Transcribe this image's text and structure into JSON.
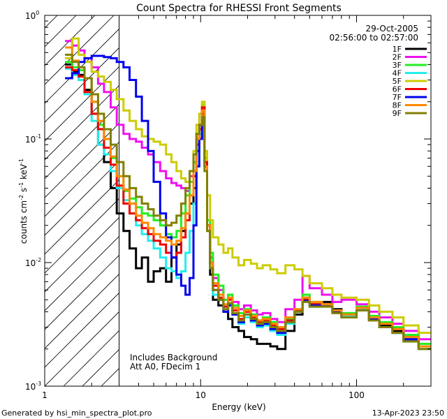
{
  "footer": {
    "generated": "Generated by hsi_min_spectra_plot.pro",
    "timestamp": "13-Apr-2023 23:50"
  },
  "chart_data": {
    "type": "line",
    "title": "Count Spectra for RHESSI Front Segments",
    "xlabel": "Energy (keV)",
    "ylabel_parts": [
      "counts cm",
      "-2",
      " s",
      "-1",
      " keV",
      "-1"
    ],
    "xscale": "log",
    "yscale": "log",
    "xlim": [
      1.0,
      300.0
    ],
    "ylim": [
      0.001,
      1.0
    ],
    "x_ticks": [
      {
        "value": 1,
        "label": "1"
      },
      {
        "value": 10,
        "label": "10"
      },
      {
        "value": 100,
        "label": "100"
      }
    ],
    "y_ticks": [
      {
        "value": 1,
        "base": "10",
        "exp": "0"
      },
      {
        "value": 0.1,
        "base": "10",
        "exp": "-1"
      },
      {
        "value": 0.01,
        "base": "10",
        "exp": "-2"
      },
      {
        "value": 0.001,
        "base": "10",
        "exp": "-3"
      }
    ],
    "date": "29-Oct-2005",
    "time_range": "02:56:00 to 02:57:00",
    "annotations": [
      "Includes Background",
      "Att A0, FDecim 1"
    ],
    "hatched_region": {
      "x_from": 1.0,
      "x_to": 3.0
    },
    "energy_edges": [
      1.35,
      1.5,
      1.65,
      1.8,
      2.0,
      2.2,
      2.4,
      2.65,
      2.9,
      3.2,
      3.5,
      3.85,
      4.2,
      4.6,
      5.0,
      5.5,
      6.0,
      6.5,
      7.0,
      7.5,
      8.0,
      8.5,
      9.0,
      9.4,
      9.8,
      10.2,
      10.6,
      11.0,
      11.5,
      12.0,
      13.0,
      14.0,
      15.0,
      16.0,
      17.5,
      19.0,
      21.0,
      23.0,
      25.0,
      28.0,
      31.0,
      35.0,
      40.0,
      45.0,
      50.0,
      60.0,
      70.0,
      80.0,
      100.0,
      120.0,
      140.0,
      170.0,
      200.0,
      250.0,
      300.0
    ],
    "series": [
      {
        "name": "1F",
        "color": "#000000",
        "values": [
          0.4,
          0.35,
          0.33,
          0.25,
          0.16,
          0.09,
          0.065,
          0.04,
          0.025,
          0.018,
          0.013,
          0.009,
          0.011,
          0.007,
          0.0085,
          0.009,
          0.007,
          0.011,
          0.014,
          0.018,
          0.025,
          0.03,
          0.04,
          0.08,
          0.1,
          0.17,
          0.06,
          0.02,
          0.008,
          0.005,
          0.0045,
          0.004,
          0.0035,
          0.003,
          0.0028,
          0.0025,
          0.0024,
          0.0022,
          0.0022,
          0.0021,
          0.002,
          0.0028,
          0.0038,
          0.0052,
          0.0046,
          0.0048,
          0.0042,
          0.0038,
          0.0042,
          0.0036,
          0.0031,
          0.0028,
          0.0024,
          0.0021
        ]
      },
      {
        "name": "2F",
        "color": "#ee11ee",
        "values": [
          0.62,
          0.57,
          0.52,
          0.45,
          0.38,
          0.28,
          0.24,
          0.18,
          0.13,
          0.11,
          0.1,
          0.095,
          0.085,
          0.075,
          0.065,
          0.055,
          0.048,
          0.044,
          0.042,
          0.04,
          0.038,
          0.05,
          0.065,
          0.1,
          0.12,
          0.16,
          0.06,
          0.02,
          0.011,
          0.0075,
          0.006,
          0.005,
          0.0055,
          0.0048,
          0.0042,
          0.0045,
          0.0041,
          0.0038,
          0.0039,
          0.0035,
          0.0033,
          0.0042,
          0.005,
          0.0078,
          0.0062,
          0.0055,
          0.0048,
          0.005,
          0.0046,
          0.004,
          0.0036,
          0.0032,
          0.0028,
          0.0024
        ]
      },
      {
        "name": "3F",
        "color": "#22ee22",
        "values": [
          0.42,
          0.38,
          0.36,
          0.31,
          0.2,
          0.13,
          0.1,
          0.07,
          0.05,
          0.038,
          0.033,
          0.028,
          0.025,
          0.024,
          0.022,
          0.02,
          0.017,
          0.016,
          0.018,
          0.025,
          0.035,
          0.045,
          0.065,
          0.11,
          0.13,
          0.19,
          0.07,
          0.022,
          0.012,
          0.008,
          0.0065,
          0.005,
          0.0055,
          0.0045,
          0.0039,
          0.0042,
          0.0038,
          0.0034,
          0.0036,
          0.0033,
          0.003,
          0.0035,
          0.0042,
          0.0055,
          0.0048,
          0.0046,
          0.0041,
          0.0039,
          0.0044,
          0.0037,
          0.0033,
          0.003,
          0.0026,
          0.0022
        ]
      },
      {
        "name": "4F",
        "color": "#22eeee",
        "values": [
          0.37,
          0.33,
          0.3,
          0.23,
          0.14,
          0.09,
          0.075,
          0.055,
          0.04,
          0.032,
          0.025,
          0.02,
          0.017,
          0.015,
          0.013,
          0.011,
          0.009,
          0.0085,
          0.0075,
          0.0085,
          0.012,
          0.018,
          0.03,
          0.06,
          0.11,
          0.15,
          0.055,
          0.018,
          0.009,
          0.0055,
          0.005,
          0.0042,
          0.0046,
          0.0038,
          0.0032,
          0.0036,
          0.0033,
          0.003,
          0.0031,
          0.0028,
          0.0026,
          0.0032,
          0.004,
          0.0048,
          0.0044,
          0.0045,
          0.004,
          0.0037,
          0.0042,
          0.0035,
          0.003,
          0.0027,
          0.0023,
          0.002
        ]
      },
      {
        "name": "5F",
        "color": "#cccc00",
        "values": [
          0.45,
          0.65,
          0.48,
          0.42,
          0.35,
          0.32,
          0.29,
          0.25,
          0.21,
          0.17,
          0.14,
          0.12,
          0.105,
          0.1,
          0.095,
          0.09,
          0.075,
          0.065,
          0.055,
          0.048,
          0.045,
          0.055,
          0.08,
          0.13,
          0.16,
          0.2,
          0.08,
          0.035,
          0.022,
          0.016,
          0.014,
          0.012,
          0.013,
          0.011,
          0.0095,
          0.0105,
          0.0098,
          0.009,
          0.0095,
          0.0088,
          0.0082,
          0.0095,
          0.0088,
          0.0078,
          0.0068,
          0.0062,
          0.0055,
          0.0052,
          0.005,
          0.0045,
          0.004,
          0.0036,
          0.0031,
          0.0027
        ]
      },
      {
        "name": "6F",
        "color": "#ee0000",
        "values": [
          0.38,
          0.36,
          0.32,
          0.24,
          0.16,
          0.12,
          0.085,
          0.062,
          0.042,
          0.03,
          0.025,
          0.022,
          0.019,
          0.017,
          0.015,
          0.014,
          0.012,
          0.011,
          0.012,
          0.016,
          0.022,
          0.035,
          0.05,
          0.09,
          0.12,
          0.18,
          0.065,
          0.02,
          0.01,
          0.0065,
          0.0052,
          0.0044,
          0.005,
          0.0041,
          0.0035,
          0.004,
          0.0036,
          0.0033,
          0.0034,
          0.0031,
          0.0029,
          0.0034,
          0.0041,
          0.005,
          0.0046,
          0.0046,
          0.0041,
          0.0038,
          0.0043,
          0.0036,
          0.0032,
          0.0029,
          0.0025,
          0.0021
        ]
      },
      {
        "name": "7F",
        "color": "#0000ee",
        "values": [
          0.31,
          0.34,
          0.42,
          0.45,
          0.47,
          0.47,
          0.46,
          0.45,
          0.42,
          0.38,
          0.3,
          0.22,
          0.14,
          0.08,
          0.045,
          0.025,
          0.016,
          0.011,
          0.008,
          0.0065,
          0.0055,
          0.0075,
          0.02,
          0.06,
          0.1,
          0.16,
          0.06,
          0.02,
          0.01,
          0.006,
          0.005,
          0.004,
          0.0045,
          0.0038,
          0.0033,
          0.0038,
          0.0034,
          0.0031,
          0.0032,
          0.0029,
          0.0027,
          0.0033,
          0.004,
          0.0049,
          0.0045,
          0.0045,
          0.004,
          0.0036,
          0.0041,
          0.0035,
          0.003,
          0.0027,
          0.0024,
          0.0021
        ]
      },
      {
        "name": "8F",
        "color": "#ff8800",
        "values": [
          0.55,
          0.43,
          0.38,
          0.31,
          0.2,
          0.14,
          0.1,
          0.072,
          0.05,
          0.039,
          0.03,
          0.024,
          0.021,
          0.019,
          0.017,
          0.016,
          0.015,
          0.014,
          0.015,
          0.019,
          0.025,
          0.035,
          0.055,
          0.1,
          0.13,
          0.17,
          0.06,
          0.02,
          0.01,
          0.0068,
          0.0055,
          0.0046,
          0.0052,
          0.0043,
          0.0037,
          0.0041,
          0.0037,
          0.0034,
          0.0035,
          0.0032,
          0.003,
          0.0036,
          0.0042,
          0.0052,
          0.0048,
          0.0046,
          0.0041,
          0.0038,
          0.0043,
          0.0036,
          0.0032,
          0.0029,
          0.0025,
          0.0021
        ]
      },
      {
        "name": "9F",
        "color": "#808000",
        "values": [
          0.48,
          0.42,
          0.38,
          0.31,
          0.23,
          0.16,
          0.12,
          0.09,
          0.065,
          0.05,
          0.04,
          0.034,
          0.03,
          0.027,
          0.024,
          0.022,
          0.02,
          0.021,
          0.024,
          0.03,
          0.04,
          0.055,
          0.075,
          0.11,
          0.13,
          0.15,
          0.055,
          0.018,
          0.009,
          0.006,
          0.005,
          0.0042,
          0.0047,
          0.0039,
          0.0034,
          0.0038,
          0.0035,
          0.0032,
          0.0033,
          0.003,
          0.0028,
          0.0033,
          0.004,
          0.0048,
          0.0044,
          0.0044,
          0.0039,
          0.0036,
          0.0041,
          0.0034,
          0.003,
          0.0027,
          0.0023,
          0.002
        ]
      }
    ]
  }
}
